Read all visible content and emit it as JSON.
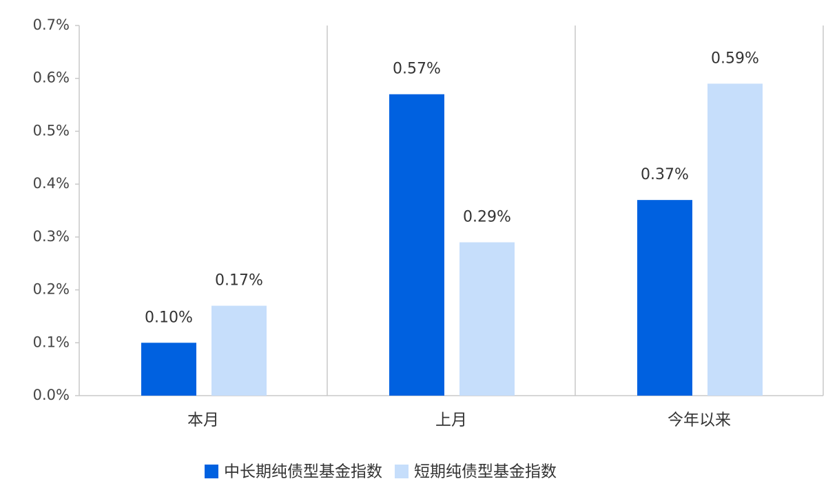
{
  "chart_data": {
    "type": "bar",
    "categories": [
      "本月",
      "上月",
      "今年以来"
    ],
    "series": [
      {
        "name": "中长期纯债型基金指数",
        "color": "#0061e0",
        "values": [
          0.1,
          0.57,
          0.37
        ],
        "value_labels": [
          "0.10%",
          "0.57%",
          "0.37%"
        ]
      },
      {
        "name": "短期纯债型基金指数",
        "color": "#c6defb",
        "values": [
          0.17,
          0.29,
          0.59
        ],
        "value_labels": [
          "0.17%",
          "0.29%",
          "0.59%"
        ]
      }
    ],
    "ylim": [
      0,
      0.7
    ],
    "yticks": [
      {
        "value": 0,
        "label": "0.0%"
      },
      {
        "value": 0.1,
        "label": "0.1%"
      },
      {
        "value": 0.2,
        "label": "0.2%"
      },
      {
        "value": 0.3,
        "label": "0.3%"
      },
      {
        "value": 0.4,
        "label": "0.4%"
      },
      {
        "value": 0.5,
        "label": "0.5%"
      },
      {
        "value": 0.6,
        "label": "0.6%"
      },
      {
        "value": 0.7,
        "label": "0.7%"
      }
    ],
    "legend": "bottom"
  }
}
